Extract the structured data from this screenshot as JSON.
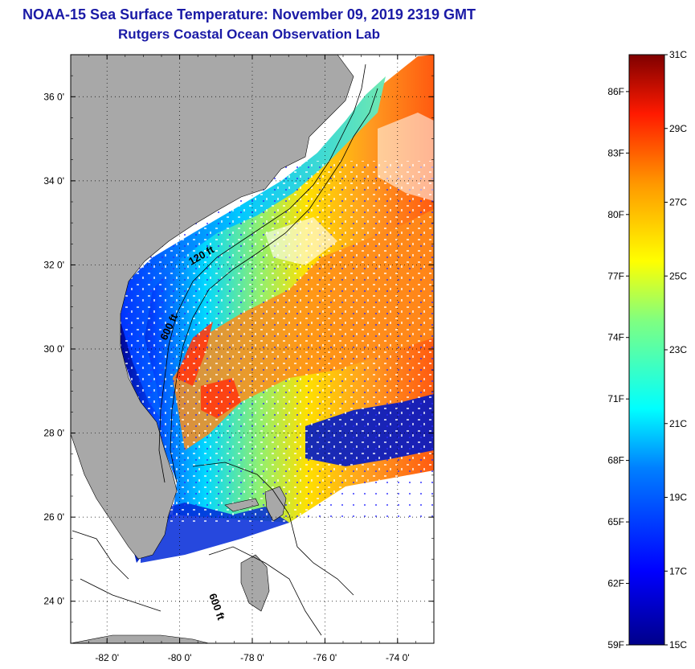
{
  "header": {
    "title": "NOAA-15 Sea Surface Temperature:  November 09, 2019 2319 GMT",
    "subtitle": "Rutgers Coastal Ocean Observation Lab"
  },
  "map": {
    "lon_range": [
      -83,
      -73
    ],
    "lat_range": [
      23,
      37
    ],
    "lat_ticks": [
      {
        "value": 36,
        "label": "36 0'"
      },
      {
        "value": 34,
        "label": "34 0'"
      },
      {
        "value": 32,
        "label": "32 0'"
      },
      {
        "value": 30,
        "label": "30 0'"
      },
      {
        "value": 28,
        "label": "28 0'"
      },
      {
        "value": 26,
        "label": "26 0'"
      },
      {
        "value": 24,
        "label": "24 0'"
      }
    ],
    "lon_ticks": [
      {
        "value": -82,
        "label": "-82 0'"
      },
      {
        "value": -80,
        "label": "-80 0'"
      },
      {
        "value": -78,
        "label": "-78 0'"
      },
      {
        "value": -76,
        "label": "-76 0'"
      },
      {
        "value": -74,
        "label": "-74 0'"
      }
    ],
    "contour_labels": [
      {
        "text": "120 ft"
      },
      {
        "text": "600 ft"
      },
      {
        "text": "600 ft"
      }
    ],
    "colors": {
      "land": "#a8a8a8",
      "cloud": "#ffffff",
      "frame": "#000000"
    }
  },
  "colorbar": {
    "min_c": 15,
    "max_c": 31,
    "celsius_labels": [
      "31C",
      "29C",
      "27C",
      "25C",
      "23C",
      "21C",
      "19C",
      "17C",
      "15C"
    ],
    "fahrenheit_labels": [
      "86F",
      "83F",
      "80F",
      "77F",
      "74F",
      "71F",
      "68F",
      "65F",
      "62F",
      "59F"
    ],
    "gradient_stops": [
      "#00008a",
      "#0000ff",
      "#007fff",
      "#00ffff",
      "#7fff7f",
      "#ffff00",
      "#ff7f00",
      "#ff0000",
      "#7f0000"
    ]
  }
}
